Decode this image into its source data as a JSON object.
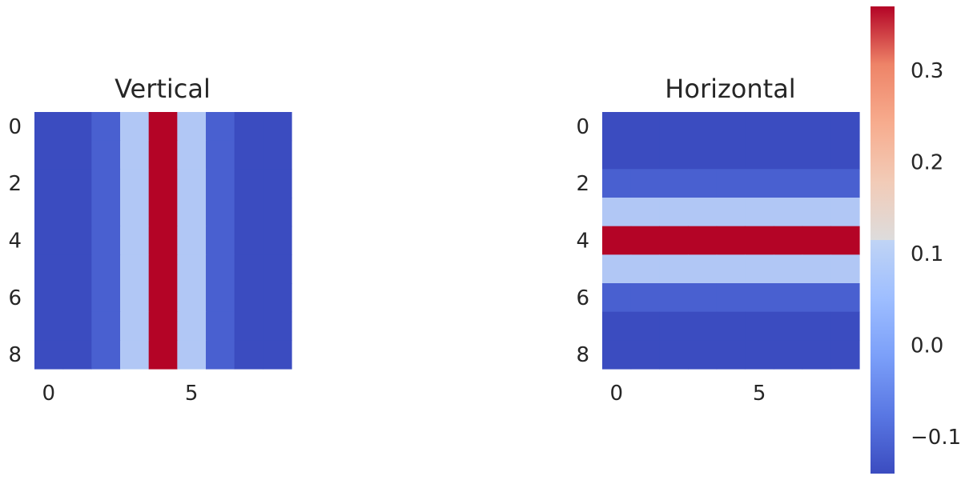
{
  "chart_data": [
    {
      "type": "heatmap",
      "title": "Vertical",
      "x_ticks": [
        "0",
        "5"
      ],
      "y_ticks": [
        "0",
        "2",
        "4",
        "6",
        "8"
      ],
      "z": [
        [
          -0.14,
          -0.14,
          -0.11,
          0.07,
          0.37,
          0.07,
          -0.11,
          -0.14,
          -0.14
        ],
        [
          -0.14,
          -0.14,
          -0.11,
          0.07,
          0.37,
          0.07,
          -0.11,
          -0.14,
          -0.14
        ],
        [
          -0.14,
          -0.14,
          -0.11,
          0.07,
          0.37,
          0.07,
          -0.11,
          -0.14,
          -0.14
        ],
        [
          -0.14,
          -0.14,
          -0.11,
          0.07,
          0.37,
          0.07,
          -0.11,
          -0.14,
          -0.14
        ],
        [
          -0.14,
          -0.14,
          -0.11,
          0.07,
          0.37,
          0.07,
          -0.11,
          -0.14,
          -0.14
        ],
        [
          -0.14,
          -0.14,
          -0.11,
          0.07,
          0.37,
          0.07,
          -0.11,
          -0.14,
          -0.14
        ],
        [
          -0.14,
          -0.14,
          -0.11,
          0.07,
          0.37,
          0.07,
          -0.11,
          -0.14,
          -0.14
        ],
        [
          -0.14,
          -0.14,
          -0.11,
          0.07,
          0.37,
          0.07,
          -0.11,
          -0.14,
          -0.14
        ],
        [
          -0.14,
          -0.14,
          -0.11,
          0.07,
          0.37,
          0.07,
          -0.11,
          -0.14,
          -0.14
        ]
      ]
    },
    {
      "type": "heatmap",
      "title": "Horizontal",
      "x_ticks": [
        "0",
        "5"
      ],
      "y_ticks": [
        "0",
        "2",
        "4",
        "6",
        "8"
      ],
      "z": [
        [
          -0.14,
          -0.14,
          -0.14,
          -0.14,
          -0.14,
          -0.14,
          -0.14,
          -0.14,
          -0.14
        ],
        [
          -0.14,
          -0.14,
          -0.14,
          -0.14,
          -0.14,
          -0.14,
          -0.14,
          -0.14,
          -0.14
        ],
        [
          -0.11,
          -0.11,
          -0.11,
          -0.11,
          -0.11,
          -0.11,
          -0.11,
          -0.11,
          -0.11
        ],
        [
          0.07,
          0.07,
          0.07,
          0.07,
          0.07,
          0.07,
          0.07,
          0.07,
          0.07
        ],
        [
          0.37,
          0.37,
          0.37,
          0.37,
          0.37,
          0.37,
          0.37,
          0.37,
          0.37
        ],
        [
          0.07,
          0.07,
          0.07,
          0.07,
          0.07,
          0.07,
          0.07,
          0.07,
          0.07
        ],
        [
          -0.11,
          -0.11,
          -0.11,
          -0.11,
          -0.11,
          -0.11,
          -0.11,
          -0.11,
          -0.11
        ],
        [
          -0.14,
          -0.14,
          -0.14,
          -0.14,
          -0.14,
          -0.14,
          -0.14,
          -0.14,
          -0.14
        ],
        [
          -0.14,
          -0.14,
          -0.14,
          -0.14,
          -0.14,
          -0.14,
          -0.14,
          -0.14,
          -0.14
        ]
      ]
    }
  ],
  "colorbar": {
    "colormap": "coolwarm",
    "vmin": -0.14,
    "vmax": 0.37,
    "ticks": [
      -0.1,
      0.0,
      0.1,
      0.2,
      0.3
    ],
    "tick_labels": [
      "−0.1",
      "0.0",
      "0.1",
      "0.2",
      "0.3"
    ]
  },
  "colors": {
    "low": "#3b4cc0",
    "mid": "#dddddd",
    "high": "#b40426"
  }
}
